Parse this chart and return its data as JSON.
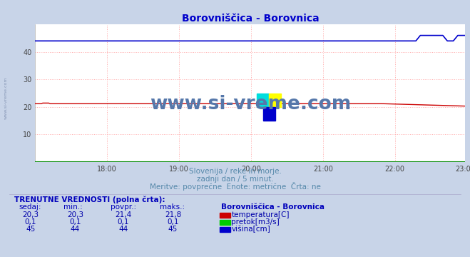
{
  "title": "Borovniščica - Borovnica",
  "background_color": "#c8d4e8",
  "plot_bg_color": "#ffffff",
  "y_ticks": [
    10,
    20,
    30,
    40
  ],
  "x_tick_labels": [
    "18:00",
    "19:00",
    "20:00",
    "21:00",
    "22:00",
    "23:00"
  ],
  "grid_color": "#ffaaaa",
  "temp_color": "#cc0000",
  "flow_color": "#008800",
  "height_color": "#0000cc",
  "watermark_color": "#5577aa",
  "watermark_text": "www.si-vreme.com",
  "subtitle1": "Slovenija / reke in morje.",
  "subtitle2": "zadnji dan / 5 minut.",
  "subtitle3": "Meritve: povprečne  Enote: metrične  Črta: ne",
  "subtitle_color": "#5588aa",
  "table_header": "TRENUTNE VREDNOSTI (polna črta):",
  "col_headers": [
    "sedaj:",
    "min.:",
    "povpr.:",
    "maks.:"
  ],
  "col_header_color": "#0000bb",
  "table_color": "#0000aa",
  "row1_vals": [
    "20,3",
    "20,3",
    "21,4",
    "21,8"
  ],
  "row2_vals": [
    "0,1",
    "0,1",
    "0,1",
    "0,1"
  ],
  "row3_vals": [
    "45",
    "44",
    "44",
    "45"
  ],
  "legend_title": "Borovniščica - Borovnica",
  "legend_items": [
    "temperatura[C]",
    "pretok[m3/s]",
    "višina[cm]"
  ],
  "legend_colors": [
    "#cc0000",
    "#00cc00",
    "#0000cc"
  ],
  "n_points": 288,
  "side_text": "www.si-vreme.com"
}
